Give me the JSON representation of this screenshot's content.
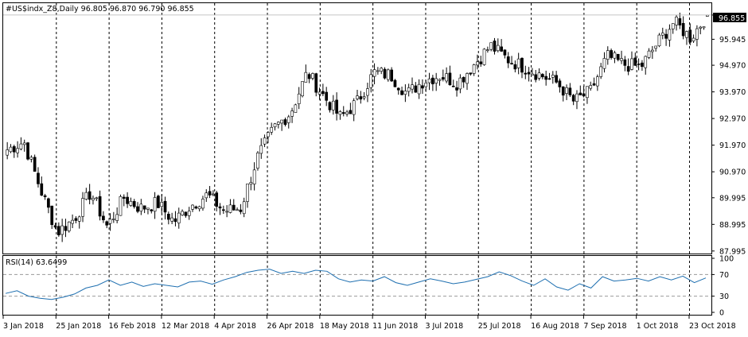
{
  "window": {
    "header": "#US$indx_Z8,Daily  96.805 96.870 96.790 96.855",
    "rsi_label": "RSI(14) 63.6499",
    "price_badge": "96.855"
  },
  "colors": {
    "bull_candle": "#ffffff",
    "bear_candle": "#000000",
    "candle_outline": "#000000",
    "rsi_line": "#1e6fb0",
    "separator": "#000000",
    "price_badge_bg": "#000000",
    "price_badge_text": "#ffffff"
  },
  "chart_data": [
    {
      "type": "candlestick",
      "title": "#US$indx_Z8,Daily",
      "y_tick_labels": [
        "96.855",
        "95.945",
        "94.970",
        "93.970",
        "92.970",
        "91.970",
        "90.970",
        "89.995",
        "88.995",
        "87.995"
      ],
      "x_tick_labels": [
        "3 Jan 2018",
        "25 Jan 2018",
        "16 Feb 2018",
        "12 Mar 2018",
        "4 Apr 2018",
        "26 Apr 2018",
        "18 May 2018",
        "11 Jun 2018",
        "3 Jul 2018",
        "25 Jul 2018",
        "16 Aug 2018",
        "7 Sep 2018",
        "1 Oct 2018",
        "23 Oct 2018"
      ],
      "ylim": [
        87.9,
        97.3
      ],
      "last_bar": {
        "open": 96.805,
        "high": 96.87,
        "low": 96.79,
        "close": 96.855
      },
      "close_series": [
        {
          "d": "3 Jan 2018",
          "v": 91.8
        },
        {
          "d": "10 Jan 2018",
          "v": 92.1
        },
        {
          "d": "17 Jan 2018",
          "v": 90.3
        },
        {
          "d": "25 Jan 2018",
          "v": 88.7
        },
        {
          "d": "1 Feb 2018",
          "v": 89.2
        },
        {
          "d": "8 Feb 2018",
          "v": 90.2
        },
        {
          "d": "16 Feb 2018",
          "v": 88.9
        },
        {
          "d": "23 Feb 2018",
          "v": 90.0
        },
        {
          "d": "2 Mar 2018",
          "v": 89.6
        },
        {
          "d": "12 Mar 2018",
          "v": 89.8
        },
        {
          "d": "20 Mar 2018",
          "v": 89.1
        },
        {
          "d": "27 Mar 2018",
          "v": 89.7
        },
        {
          "d": "4 Apr 2018",
          "v": 90.1
        },
        {
          "d": "11 Apr 2018",
          "v": 89.5
        },
        {
          "d": "18 Apr 2018",
          "v": 89.6
        },
        {
          "d": "26 Apr 2018",
          "v": 91.5
        },
        {
          "d": "3 May 2018",
          "v": 92.6
        },
        {
          "d": "10 May 2018",
          "v": 93.2
        },
        {
          "d": "18 May 2018",
          "v": 94.7
        },
        {
          "d": "25 May 2018",
          "v": 93.8
        },
        {
          "d": "4 Jun 2018",
          "v": 93.0
        },
        {
          "d": "11 Jun 2018",
          "v": 93.6
        },
        {
          "d": "19 Jun 2018",
          "v": 94.7
        },
        {
          "d": "26 Jun 2018",
          "v": 94.6
        },
        {
          "d": "3 Jul 2018",
          "v": 93.9
        },
        {
          "d": "10 Jul 2018",
          "v": 94.4
        },
        {
          "d": "17 Jul 2018",
          "v": 94.6
        },
        {
          "d": "25 Jul 2018",
          "v": 94.3
        },
        {
          "d": "1 Aug 2018",
          "v": 95.0
        },
        {
          "d": "8 Aug 2018",
          "v": 95.7
        },
        {
          "d": "16 Aug 2018",
          "v": 95.2
        },
        {
          "d": "23 Aug 2018",
          "v": 94.9
        },
        {
          "d": "30 Aug 2018",
          "v": 94.6
        },
        {
          "d": "7 Sep 2018",
          "v": 94.3
        },
        {
          "d": "14 Sep 2018",
          "v": 93.6
        },
        {
          "d": "21 Sep 2018",
          "v": 94.0
        },
        {
          "d": "1 Oct 2018",
          "v": 95.3
        },
        {
          "d": "8 Oct 2018",
          "v": 95.0
        },
        {
          "d": "15 Oct 2018",
          "v": 94.9
        },
        {
          "d": "23 Oct 2018",
          "v": 95.8
        },
        {
          "d": "30 Oct 2018",
          "v": 96.6
        },
        {
          "d": "6 Nov 2018",
          "v": 96.0
        },
        {
          "d": "13 Nov 2018",
          "v": 96.855
        }
      ]
    },
    {
      "type": "line",
      "title": "RSI(14) 63.6499",
      "y_tick_labels": [
        "100",
        "70",
        "30",
        "0"
      ],
      "levels": [
        70,
        30
      ],
      "ylim": [
        0,
        100
      ],
      "last_value": 63.6499,
      "series": [
        {
          "values": [
            35,
            40,
            30,
            26,
            24,
            28,
            34,
            45,
            50,
            60,
            50,
            56,
            48,
            53,
            50,
            47,
            56,
            58,
            52,
            60,
            66,
            74,
            78,
            80,
            72,
            76,
            72,
            78,
            76,
            62,
            56,
            60,
            58,
            66,
            55,
            50,
            56,
            62,
            58,
            53,
            56,
            61,
            66,
            75,
            68,
            58,
            50,
            62,
            47,
            41,
            53,
            45,
            66,
            58,
            60,
            63,
            58,
            66,
            60,
            67,
            55,
            63.6499
          ]
        }
      ]
    }
  ]
}
